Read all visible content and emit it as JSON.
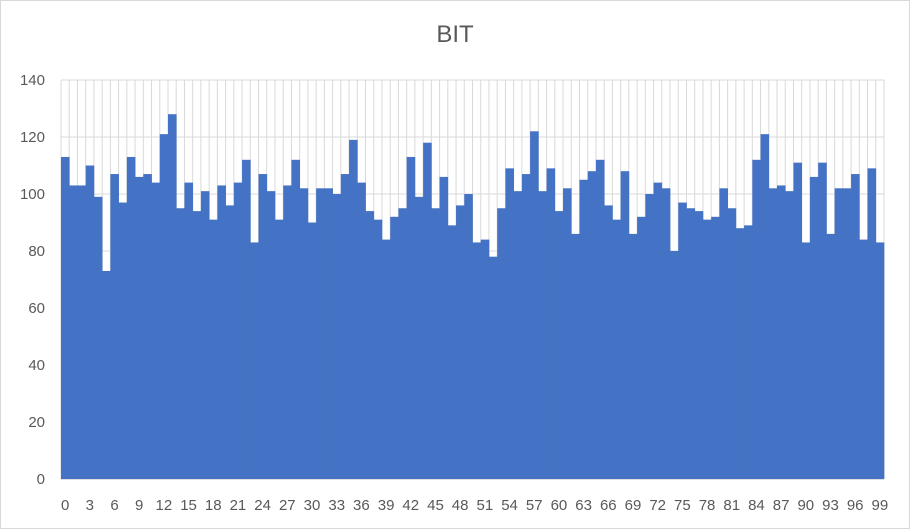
{
  "chart_data": {
    "type": "bar",
    "title": "BIT",
    "xlabel": "",
    "ylabel": "",
    "ylim": [
      0,
      140
    ],
    "yticks": [
      0,
      20,
      40,
      60,
      80,
      100,
      120,
      140
    ],
    "grid": true,
    "legend": "none",
    "bar_color": "#4472C4",
    "categories": [
      0,
      1,
      2,
      3,
      4,
      5,
      6,
      7,
      8,
      9,
      10,
      11,
      12,
      13,
      14,
      15,
      16,
      17,
      18,
      19,
      20,
      21,
      22,
      23,
      24,
      25,
      26,
      27,
      28,
      29,
      30,
      31,
      32,
      33,
      34,
      35,
      36,
      37,
      38,
      39,
      40,
      41,
      42,
      43,
      44,
      45,
      46,
      47,
      48,
      49,
      50,
      51,
      52,
      53,
      54,
      55,
      56,
      57,
      58,
      59,
      60,
      61,
      62,
      63,
      64,
      65,
      66,
      67,
      68,
      69,
      70,
      71,
      72,
      73,
      74,
      75,
      76,
      77,
      78,
      79,
      80,
      81,
      82,
      83,
      84,
      85,
      86,
      87,
      88,
      89,
      90,
      91,
      92,
      93,
      94,
      95,
      96,
      97,
      98,
      99
    ],
    "xtick_labels": [
      "0",
      "3",
      "6",
      "9",
      "12",
      "15",
      "18",
      "21",
      "24",
      "27",
      "30",
      "33",
      "36",
      "39",
      "42",
      "45",
      "48",
      "51",
      "54",
      "57",
      "60",
      "63",
      "66",
      "69",
      "72",
      "75",
      "78",
      "81",
      "84",
      "87",
      "90",
      "93",
      "96",
      "99"
    ],
    "values": [
      113,
      103,
      103,
      110,
      99,
      73,
      107,
      97,
      113,
      106,
      107,
      104,
      121,
      128,
      95,
      104,
      94,
      101,
      91,
      103,
      96,
      104,
      112,
      83,
      107,
      101,
      91,
      103,
      112,
      102,
      90,
      102,
      102,
      100,
      107,
      119,
      104,
      94,
      91,
      84,
      92,
      95,
      113,
      99,
      118,
      95,
      106,
      89,
      96,
      100,
      83,
      84,
      78,
      95,
      109,
      101,
      107,
      122,
      101,
      109,
      94,
      102,
      86,
      105,
      108,
      112,
      96,
      91,
      108,
      86,
      92,
      100,
      104,
      102,
      80,
      97,
      95,
      94,
      91,
      92,
      102,
      95,
      88,
      89,
      112,
      121,
      102,
      103,
      101,
      111,
      83,
      106,
      111,
      86,
      102,
      102,
      107,
      84,
      109,
      83
    ]
  }
}
